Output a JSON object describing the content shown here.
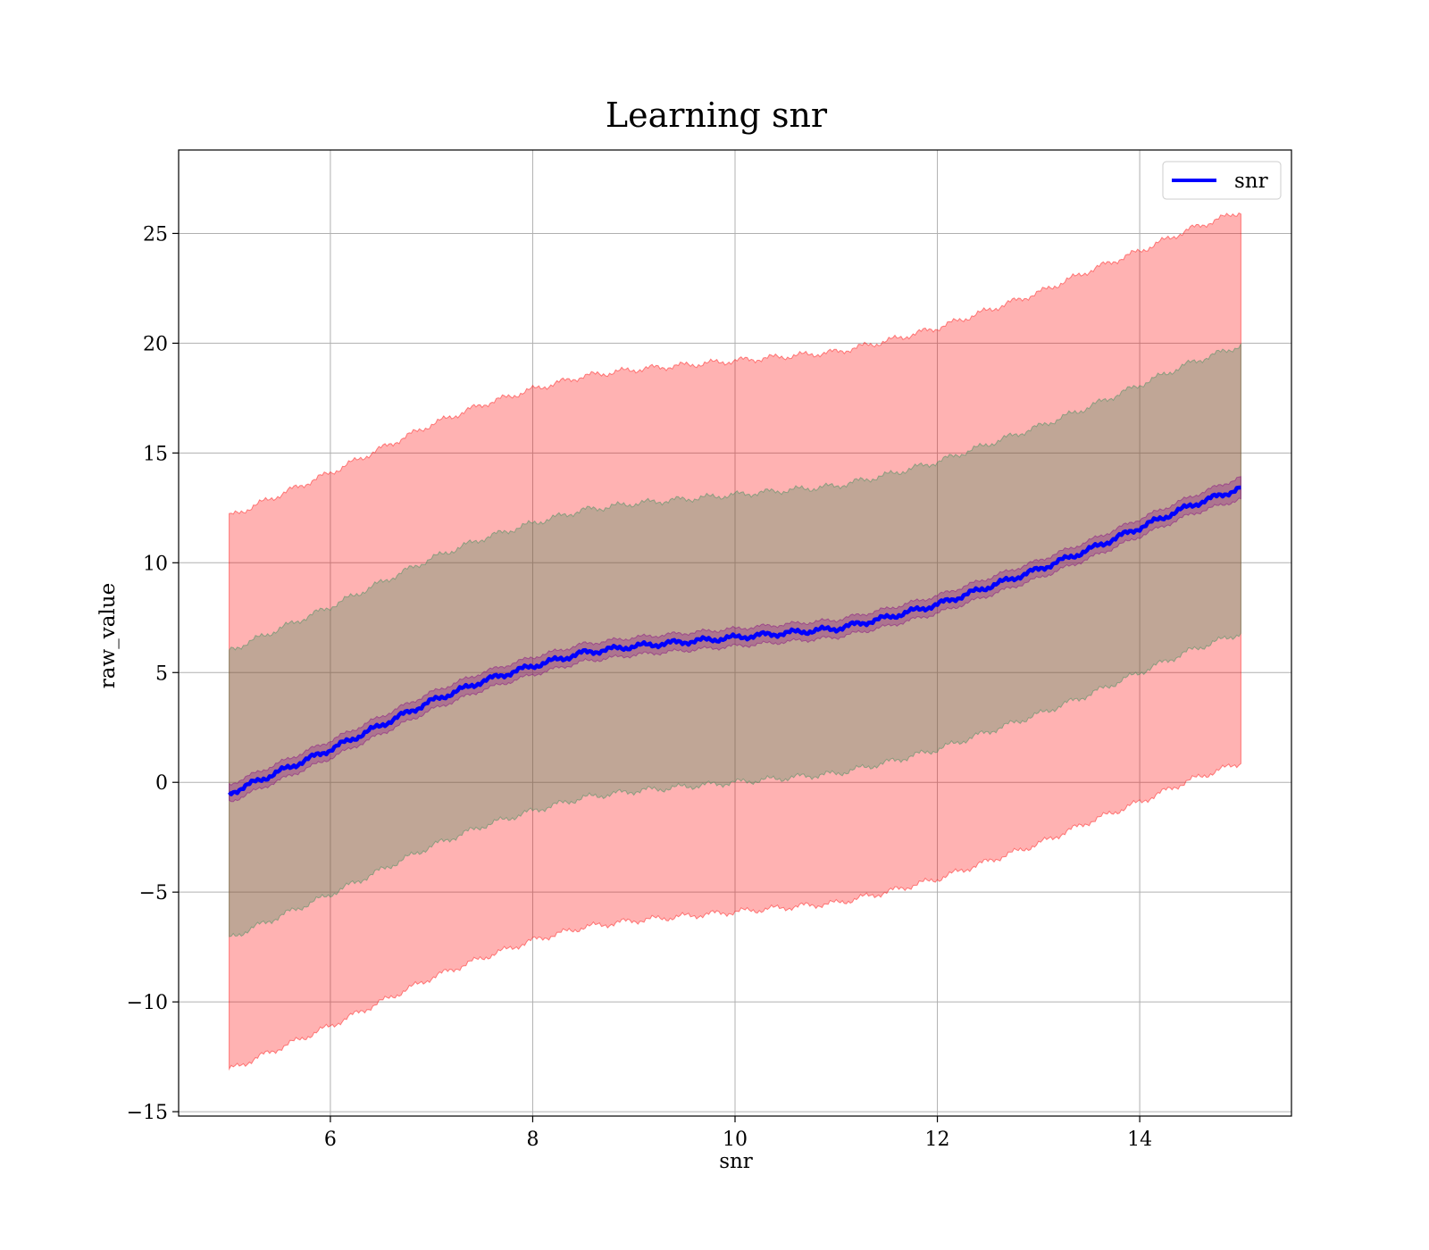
{
  "chart_data": {
    "type": "line",
    "title": "Learning snr",
    "xlabel": "snr",
    "ylabel": "raw_value",
    "xlim": [
      4.5,
      15.5
    ],
    "ylim": [
      -15.2,
      28.8
    ],
    "xticks": [
      6,
      8,
      10,
      12,
      14
    ],
    "yticks": [
      -15,
      -10,
      -5,
      0,
      5,
      10,
      15,
      20,
      25
    ],
    "grid": true,
    "legend": {
      "position": "top-right",
      "entries": [
        "snr"
      ]
    },
    "x": [
      5.0,
      5.5,
      6.0,
      6.5,
      7.0,
      7.5,
      8.0,
      8.5,
      9.0,
      9.5,
      10.0,
      10.5,
      11.0,
      11.5,
      12.0,
      12.5,
      13.0,
      13.5,
      14.0,
      14.5,
      15.0
    ],
    "series": [
      {
        "name": "snr",
        "color": "#0000ff",
        "values": [
          -0.5,
          0.5,
          1.5,
          2.6,
          3.7,
          4.6,
          5.3,
          5.9,
          6.2,
          6.4,
          6.6,
          6.8,
          7.0,
          7.5,
          8.1,
          8.9,
          9.7,
          10.6,
          11.6,
          12.6,
          13.4
        ]
      }
    ],
    "bands": [
      {
        "color": "#ff0000",
        "opacity": 0.3,
        "lower": [
          -13.1,
          -12.1,
          -11.1,
          -10.0,
          -8.9,
          -8.0,
          -7.2,
          -6.6,
          -6.3,
          -6.1,
          -5.9,
          -5.7,
          -5.5,
          -5.0,
          -4.4,
          -3.6,
          -2.8,
          -1.8,
          -0.9,
          0.1,
          0.9
        ],
        "upper": [
          12.1,
          13.1,
          14.1,
          15.2,
          16.3,
          17.2,
          17.9,
          18.5,
          18.8,
          19.0,
          19.2,
          19.4,
          19.6,
          20.1,
          20.7,
          21.5,
          22.3,
          23.3,
          24.2,
          25.2,
          26.0
        ]
      },
      {
        "color": "#2e8b57",
        "opacity": 0.3,
        "lower": [
          -7.1,
          -6.1,
          -5.1,
          -4.0,
          -2.9,
          -2.0,
          -1.3,
          -0.7,
          -0.4,
          -0.2,
          0.0,
          0.2,
          0.4,
          0.9,
          1.5,
          2.3,
          3.1,
          4.0,
          5.0,
          6.0,
          6.8
        ],
        "upper": [
          6.0,
          7.0,
          8.0,
          9.1,
          10.2,
          11.1,
          11.8,
          12.4,
          12.7,
          12.9,
          13.1,
          13.3,
          13.5,
          14.0,
          14.6,
          15.4,
          16.2,
          17.1,
          18.1,
          19.1,
          19.9
        ]
      },
      {
        "color": "#800080",
        "opacity": 0.3,
        "lower": [
          -0.9,
          0.1,
          1.1,
          2.2,
          3.3,
          4.2,
          4.9,
          5.5,
          5.8,
          6.0,
          6.2,
          6.4,
          6.6,
          7.1,
          7.7,
          8.5,
          9.3,
          10.2,
          11.2,
          12.2,
          12.9
        ],
        "upper": [
          -0.1,
          0.9,
          1.9,
          3.0,
          4.1,
          5.0,
          5.7,
          6.3,
          6.6,
          6.8,
          7.0,
          7.2,
          7.4,
          7.9,
          8.5,
          9.3,
          10.1,
          11.0,
          12.0,
          13.0,
          13.9
        ]
      }
    ]
  }
}
